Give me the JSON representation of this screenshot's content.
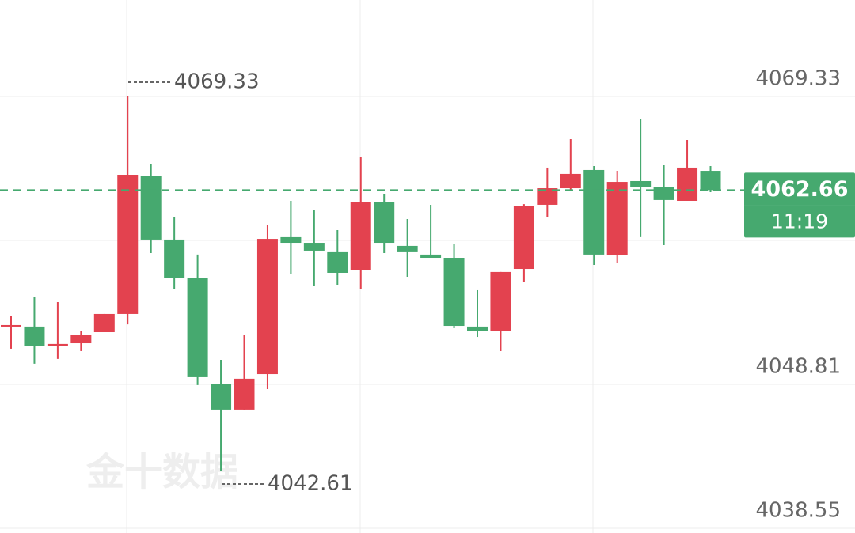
{
  "chart_data": {
    "type": "candlestick",
    "open": [
      4053.04,
      4052.93,
      4051.52,
      4051.74,
      4052.53,
      4053.83,
      4063.69,
      4059.13,
      4056.42,
      4048.81,
      4047.01,
      4049.54,
      4059.3,
      4058.9,
      4058.23,
      4056.98,
      4061.83,
      4058.68,
      4058.06,
      4057.83,
      4052.93,
      4052.59,
      4057.04,
      4061.61,
      4062.79,
      4064.09,
      4058.0,
      4063.3,
      4062.9,
      4061.89,
      4064.03
    ],
    "high": [
      4053.66,
      4055.01,
      4054.67,
      4052.59,
      4053.83,
      4069.33,
      4064.54,
      4060.76,
      4058.06,
      4050.56,
      4052.36,
      4060.14,
      4061.89,
      4061.21,
      4059.8,
      4064.99,
      4062.4,
      4060.59,
      4061.61,
      4058.79,
      4055.52,
      4056.82,
      4061.66,
      4064.26,
      4066.29,
      4064.37,
      4064.03,
      4067.75,
      4064.43,
      4066.23,
      4064.37
    ],
    "low": [
      4051.35,
      4050.28,
      4050.62,
      4051.18,
      4052.53,
      4053.09,
      4058.17,
      4055.63,
      4048.76,
      4042.61,
      4047.01,
      4048.47,
      4056.7,
      4055.8,
      4055.91,
      4055.63,
      4058.17,
      4056.48,
      4057.83,
      4052.81,
      4052.19,
      4051.18,
      4056.14,
      4060.71,
      4062.68,
      4057.32,
      4057.44,
      4059.3,
      4058.73,
      4061.89,
      4062.51
    ],
    "close": [
      4053.04,
      4051.57,
      4051.69,
      4052.36,
      4053.83,
      4063.75,
      4059.13,
      4056.42,
      4049.32,
      4047.01,
      4049.21,
      4059.18,
      4058.9,
      4058.34,
      4056.76,
      4061.83,
      4058.9,
      4058.23,
      4057.83,
      4052.98,
      4052.59,
      4056.82,
      4061.55,
      4062.79,
      4063.81,
      4058.06,
      4063.24,
      4062.9,
      4061.95,
      4064.26,
      4062.66
    ],
    "up_color": "#e3424f",
    "down_color": "#46a96f",
    "ylim": [
      4038.21,
      4076.21
    ],
    "yticks": [
      4069.33,
      4048.81,
      4038.55
    ],
    "high_marker": 4069.33,
    "low_marker": 4042.61,
    "current_price": 4062.66,
    "countdown": "11:19",
    "watermark": "金十数据"
  }
}
